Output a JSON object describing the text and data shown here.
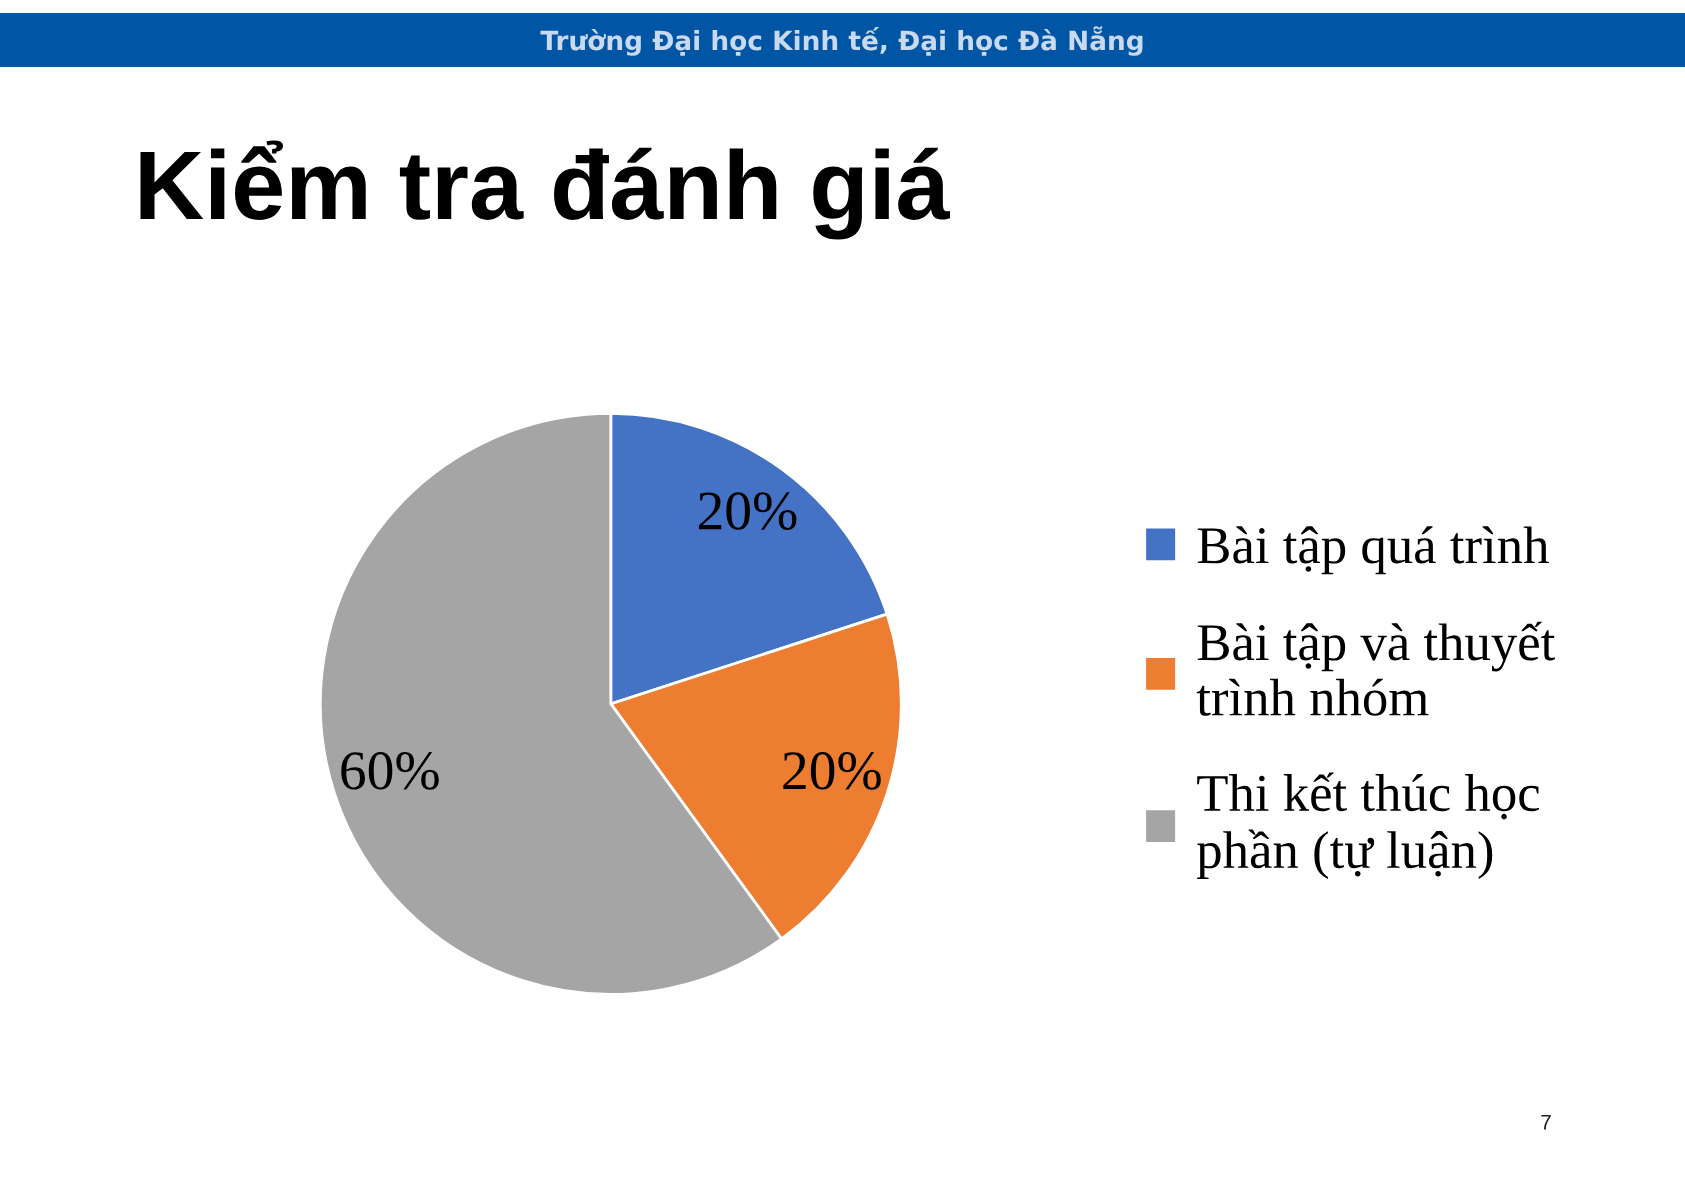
{
  "chart_data": {
    "type": "pie",
    "title": "Kiểm tra đánh giá",
    "categories": [
      "Bài tập quá trình",
      "Bài tập và thuyết\ntrình nhóm",
      "Thi kết thúc học\nphần (tự luận)"
    ],
    "values": [
      20,
      20,
      60
    ],
    "colors": [
      "#4472c4",
      "#ed7d31",
      "#a5a5a5"
    ],
    "value_labels": [
      "20%",
      "20%",
      "60%"
    ],
    "legend": "right",
    "annotations": [
      "Trường Đại học Kinh tế, Đại học Đà Nẵng",
      "7"
    ]
  }
}
